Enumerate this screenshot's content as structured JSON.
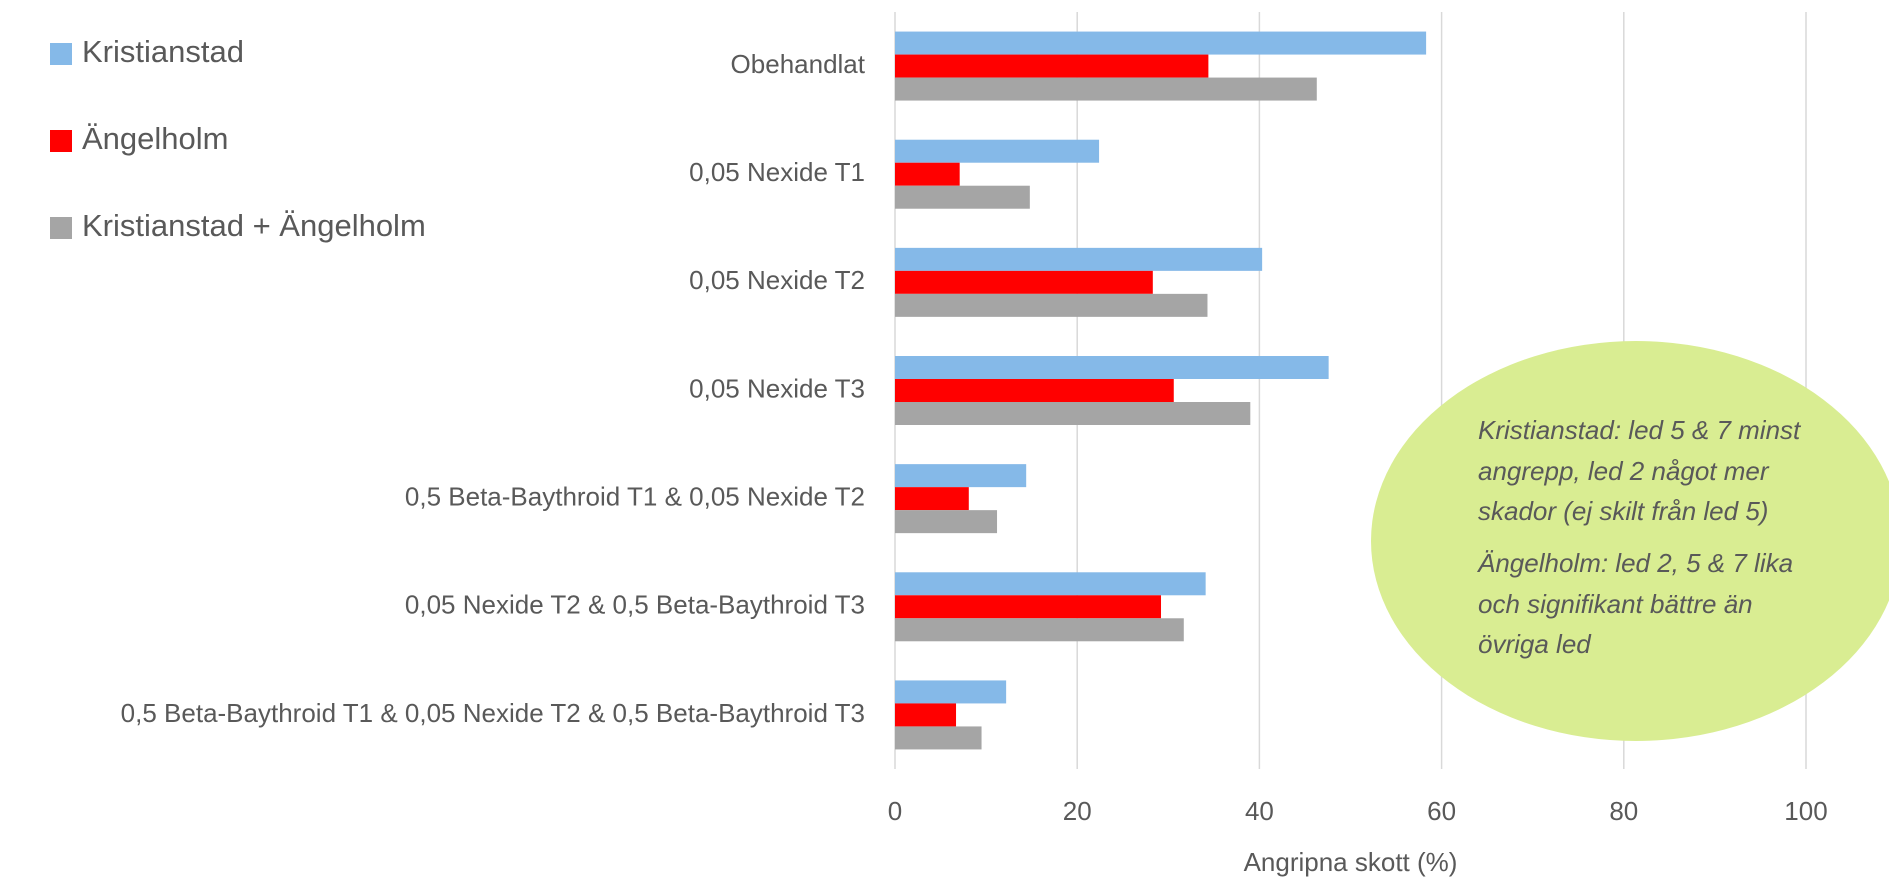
{
  "chart_data": {
    "type": "bar",
    "orientation": "horizontal",
    "categories": [
      "Obehandlat",
      "0,05 Nexide T1",
      "0,05 Nexide T2",
      "0,05 Nexide T3",
      "0,5 Beta-Baythroid T1 & 0,05 Nexide T2",
      "0,05 Nexide T2 & 0,5 Beta-Baythroid T3",
      "0,5 Beta-Baythroid T1 & 0,05 Nexide T2 & 0,5 Beta-Baythroid T3"
    ],
    "series": [
      {
        "name": "Kristianstad",
        "color": "#85b9e8",
        "values": [
          58.3,
          22.4,
          40.3,
          47.6,
          14.4,
          34.1,
          12.2
        ]
      },
      {
        "name": "Ängelholm",
        "color": "#ff0000",
        "values": [
          34.4,
          7.1,
          28.3,
          30.6,
          8.1,
          29.2,
          6.7
        ]
      },
      {
        "name": "Kristianstad + Ängelholm",
        "color": "#a5a5a5",
        "values": [
          46.3,
          14.8,
          34.3,
          39.0,
          11.2,
          31.7,
          9.5
        ]
      }
    ],
    "x_label": "Angripna skott (%)",
    "xlim": [
      0,
      100
    ],
    "xticks": [
      0,
      20,
      40,
      60,
      80,
      100
    ],
    "grid": true,
    "legend": "top-left",
    "annotation": {
      "color": "#d9ed92",
      "lines": [
        "Kristianstad: led 5 & 7 minst",
        "angrepp, led 2 något mer",
        "skador (ej skilt från led 5)",
        "Ängelholm: led 2, 5 & 7 lika",
        "och signifikant bättre än",
        "övriga led"
      ]
    }
  }
}
